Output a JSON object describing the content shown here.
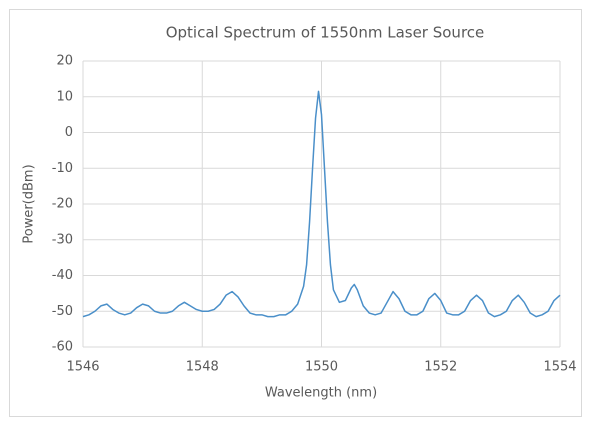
{
  "chart_data": {
    "type": "line",
    "title": "Optical Spectrum of 1550nm Laser Source",
    "x_label": "Wavelength (nm)",
    "y_label": "Power(dBm)",
    "color": "#4a8fc9",
    "x": [
      1546.0,
      1546.1,
      1546.2,
      1546.3,
      1546.4,
      1546.5,
      1546.6,
      1546.7,
      1546.8,
      1546.9,
      1547.0,
      1547.1,
      1547.2,
      1547.3,
      1547.4,
      1547.5,
      1547.6,
      1547.7,
      1547.8,
      1547.9,
      1548.0,
      1548.1,
      1548.2,
      1548.3,
      1548.4,
      1548.5,
      1548.6,
      1548.7,
      1548.8,
      1548.9,
      1549.0,
      1549.1,
      1549.2,
      1549.3,
      1549.4,
      1549.5,
      1549.6,
      1549.7,
      1549.75,
      1549.8,
      1549.85,
      1549.9,
      1549.95,
      1550.0,
      1550.05,
      1550.1,
      1550.15,
      1550.2,
      1550.3,
      1550.4,
      1550.5,
      1550.55,
      1550.6,
      1550.7,
      1550.8,
      1550.9,
      1551.0,
      1551.1,
      1551.2,
      1551.3,
      1551.4,
      1551.5,
      1551.6,
      1551.7,
      1551.8,
      1551.9,
      1552.0,
      1552.1,
      1552.2,
      1552.3,
      1552.4,
      1552.5,
      1552.6,
      1552.7,
      1552.8,
      1552.9,
      1553.0,
      1553.1,
      1553.2,
      1553.3,
      1553.4,
      1553.5,
      1553.6,
      1553.7,
      1553.8,
      1553.9,
      1554.0
    ],
    "values": [
      -51.5,
      -51,
      -50,
      -48.5,
      -48,
      -49.5,
      -50.5,
      -51,
      -50.5,
      -49,
      -48,
      -48.5,
      -50,
      -50.5,
      -50.5,
      -50,
      -48.5,
      -47.5,
      -48.5,
      -49.5,
      -50,
      -50,
      -49.5,
      -48,
      -45.5,
      -44.5,
      -46,
      -48.5,
      -50.5,
      -51,
      -51,
      -51.5,
      -51.5,
      -51,
      -51,
      -50,
      -48,
      -43,
      -37,
      -25,
      -10,
      4,
      11.5,
      5,
      -10,
      -25,
      -37,
      -44,
      -47.5,
      -47,
      -43.5,
      -42.5,
      -44,
      -48.5,
      -50.5,
      -51,
      -50.5,
      -47.5,
      -44.5,
      -46.5,
      -50,
      -51,
      -51,
      -50,
      -46.5,
      -45,
      -47,
      -50.5,
      -51,
      -51,
      -50,
      -47,
      -45.5,
      -47,
      -50.5,
      -51.5,
      -51,
      -50,
      -47,
      -45.5,
      -47.5,
      -50.5,
      -51.5,
      -51,
      -50,
      -47,
      -45.5
    ],
    "xlim": [
      1546,
      1554
    ],
    "xticks": [
      1546,
      1548,
      1550,
      1552,
      1554
    ],
    "ylim": [
      -60,
      20
    ],
    "yticks": [
      -60,
      -50,
      -40,
      -30,
      -20,
      -10,
      0,
      10,
      20
    ],
    "grid": true
  }
}
